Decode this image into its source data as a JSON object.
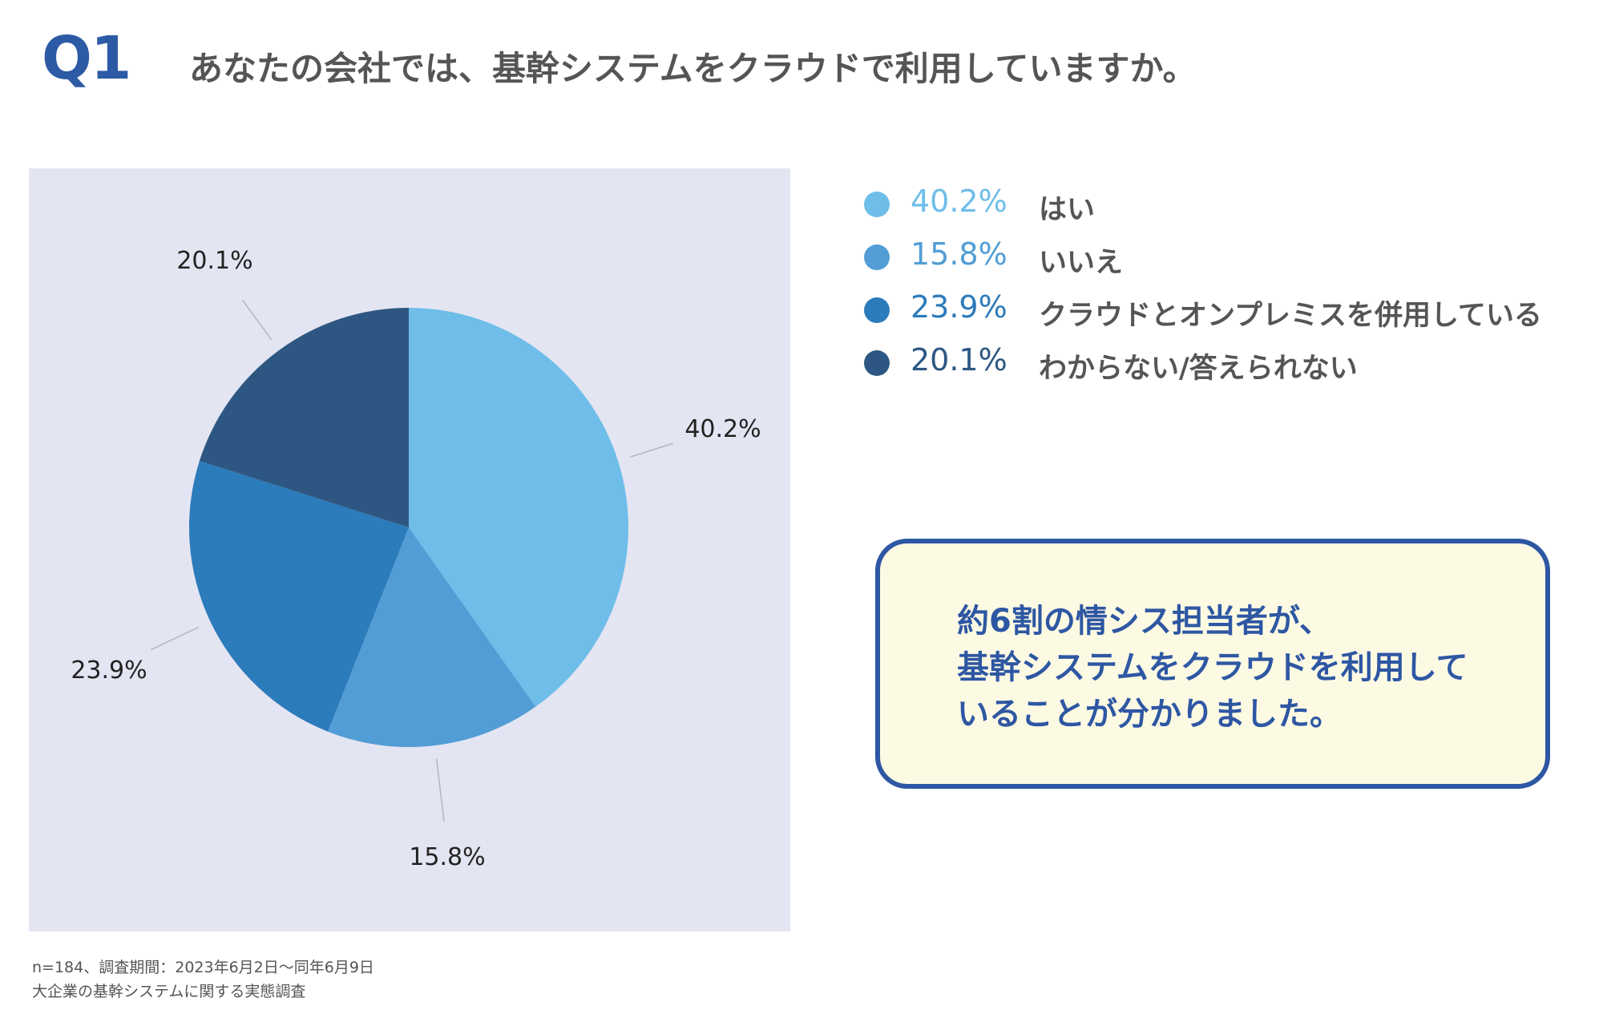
{
  "header": {
    "q_label": "Q1",
    "question": "あなたの会社では、基幹システムをクラウドで利用していますか。"
  },
  "chart_data": {
    "type": "pie",
    "slices": [
      {
        "label": "はい",
        "value": 40.2,
        "value_label": "40.2%",
        "color": "#6fbde9"
      },
      {
        "label": "いいえ",
        "value": 15.8,
        "value_label": "15.8%",
        "color": "#529dd5"
      },
      {
        "label": "クラウドとオンプレミスを併用している",
        "value": 23.9,
        "value_label": "23.9%",
        "color": "#2c7bbb"
      },
      {
        "label": "わからない/答えられない",
        "value": 20.1,
        "value_label": "20.1%",
        "color": "#2d5782"
      }
    ],
    "legend_position": "right"
  },
  "callout": {
    "lines": [
      "約6割の情シス担当者が、",
      "基幹システムをクラウドを利用して",
      "いることが分かりました。"
    ]
  },
  "footnote": {
    "lines": [
      "n=184、調査期間：2023年6月2日〜同年6月9日",
      "大企業の基幹システムに関する実態調査"
    ]
  }
}
